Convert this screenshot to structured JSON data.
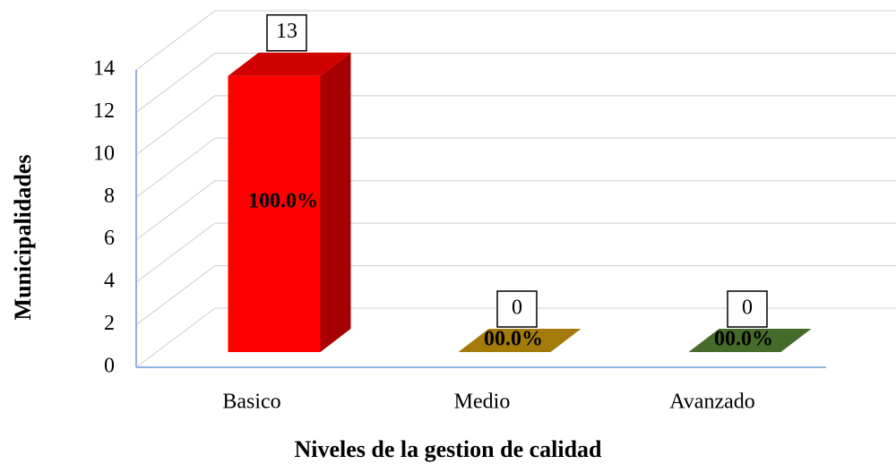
{
  "chart_data": {
    "type": "bar3d",
    "categories": [
      "Basico",
      "Medio",
      "Avanzado"
    ],
    "values": [
      13,
      0,
      0
    ],
    "percent_labels": [
      "100.0%",
      "00.0%",
      "00.0%"
    ],
    "colors": [
      "#ff0000",
      "#c8960a",
      "#548235"
    ],
    "xlabel": "Niveles de la gestion de calidad",
    "ylabel": "Municipalidades",
    "ylim": [
      0,
      14
    ],
    "yticks": [
      0,
      2,
      4,
      6,
      8,
      10,
      12,
      14
    ],
    "grid": true
  }
}
